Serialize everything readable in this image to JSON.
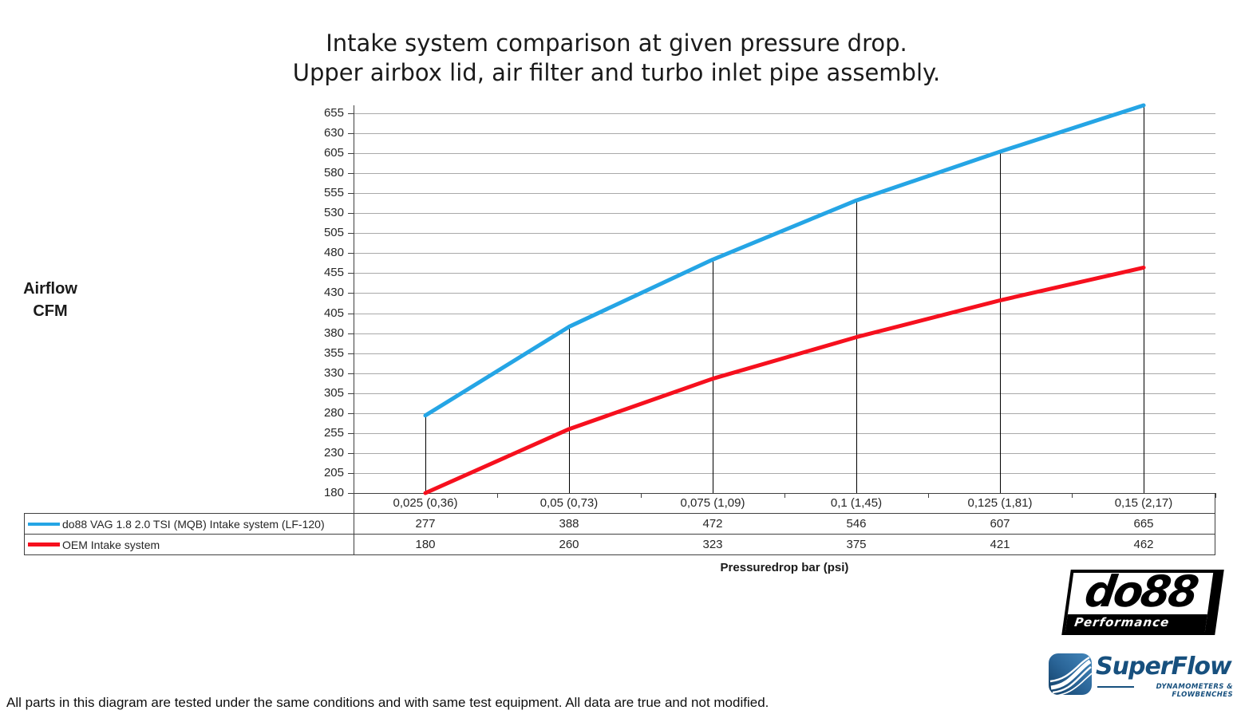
{
  "title": {
    "line1": "Intake system comparison at given pressure drop.",
    "line2": "Upper airbox lid, air filter and turbo inlet pipe assembly."
  },
  "y_axis_label": {
    "line1": "Airflow",
    "line2": "CFM"
  },
  "x_axis_label": "Pressuredrop bar (psi)",
  "footer": "All parts in this diagram are tested under the same conditions and with same test equipment. All data are true and not modified.",
  "logos": {
    "do88": {
      "name": "do88",
      "tagline": "Performance"
    },
    "superflow": {
      "name": "SuperFlow",
      "tagline": "DYNAMOMETERS & FLOWBENCHES"
    }
  },
  "chart_data": {
    "type": "line",
    "title": "Intake system comparison at given pressure drop. Upper airbox lid, air filter and turbo inlet pipe assembly.",
    "xlabel": "Pressuredrop bar (psi)",
    "ylabel": "Airflow CFM",
    "categories": [
      "0,025 (0,36)",
      "0,05 (0,73)",
      "0,075 (1,09)",
      "0,1 (1,45)",
      "0,125 (1,81)",
      "0,15 (2,17)"
    ],
    "series": [
      {
        "name": "do88 VAG 1.8 2.0 TSI (MQB) Intake system (LF-120)",
        "color": "#25A5E5",
        "values": [
          277,
          388,
          472,
          546,
          607,
          665
        ]
      },
      {
        "name": "OEM Intake system",
        "color": "#F6101E",
        "values": [
          180,
          260,
          323,
          375,
          421,
          462
        ]
      }
    ],
    "ylim": [
      180,
      665
    ],
    "y_major": 25,
    "y_ticks": [
      180,
      205,
      230,
      255,
      280,
      305,
      330,
      355,
      380,
      405,
      430,
      455,
      480,
      505,
      530,
      555,
      580,
      605,
      630,
      655
    ],
    "grid": "horizontal-major",
    "gridline_color": "#A9A9A9",
    "drop_lines": "vertical black lines from do88 series points down to x-axis",
    "legend_position": "data-table-left"
  }
}
